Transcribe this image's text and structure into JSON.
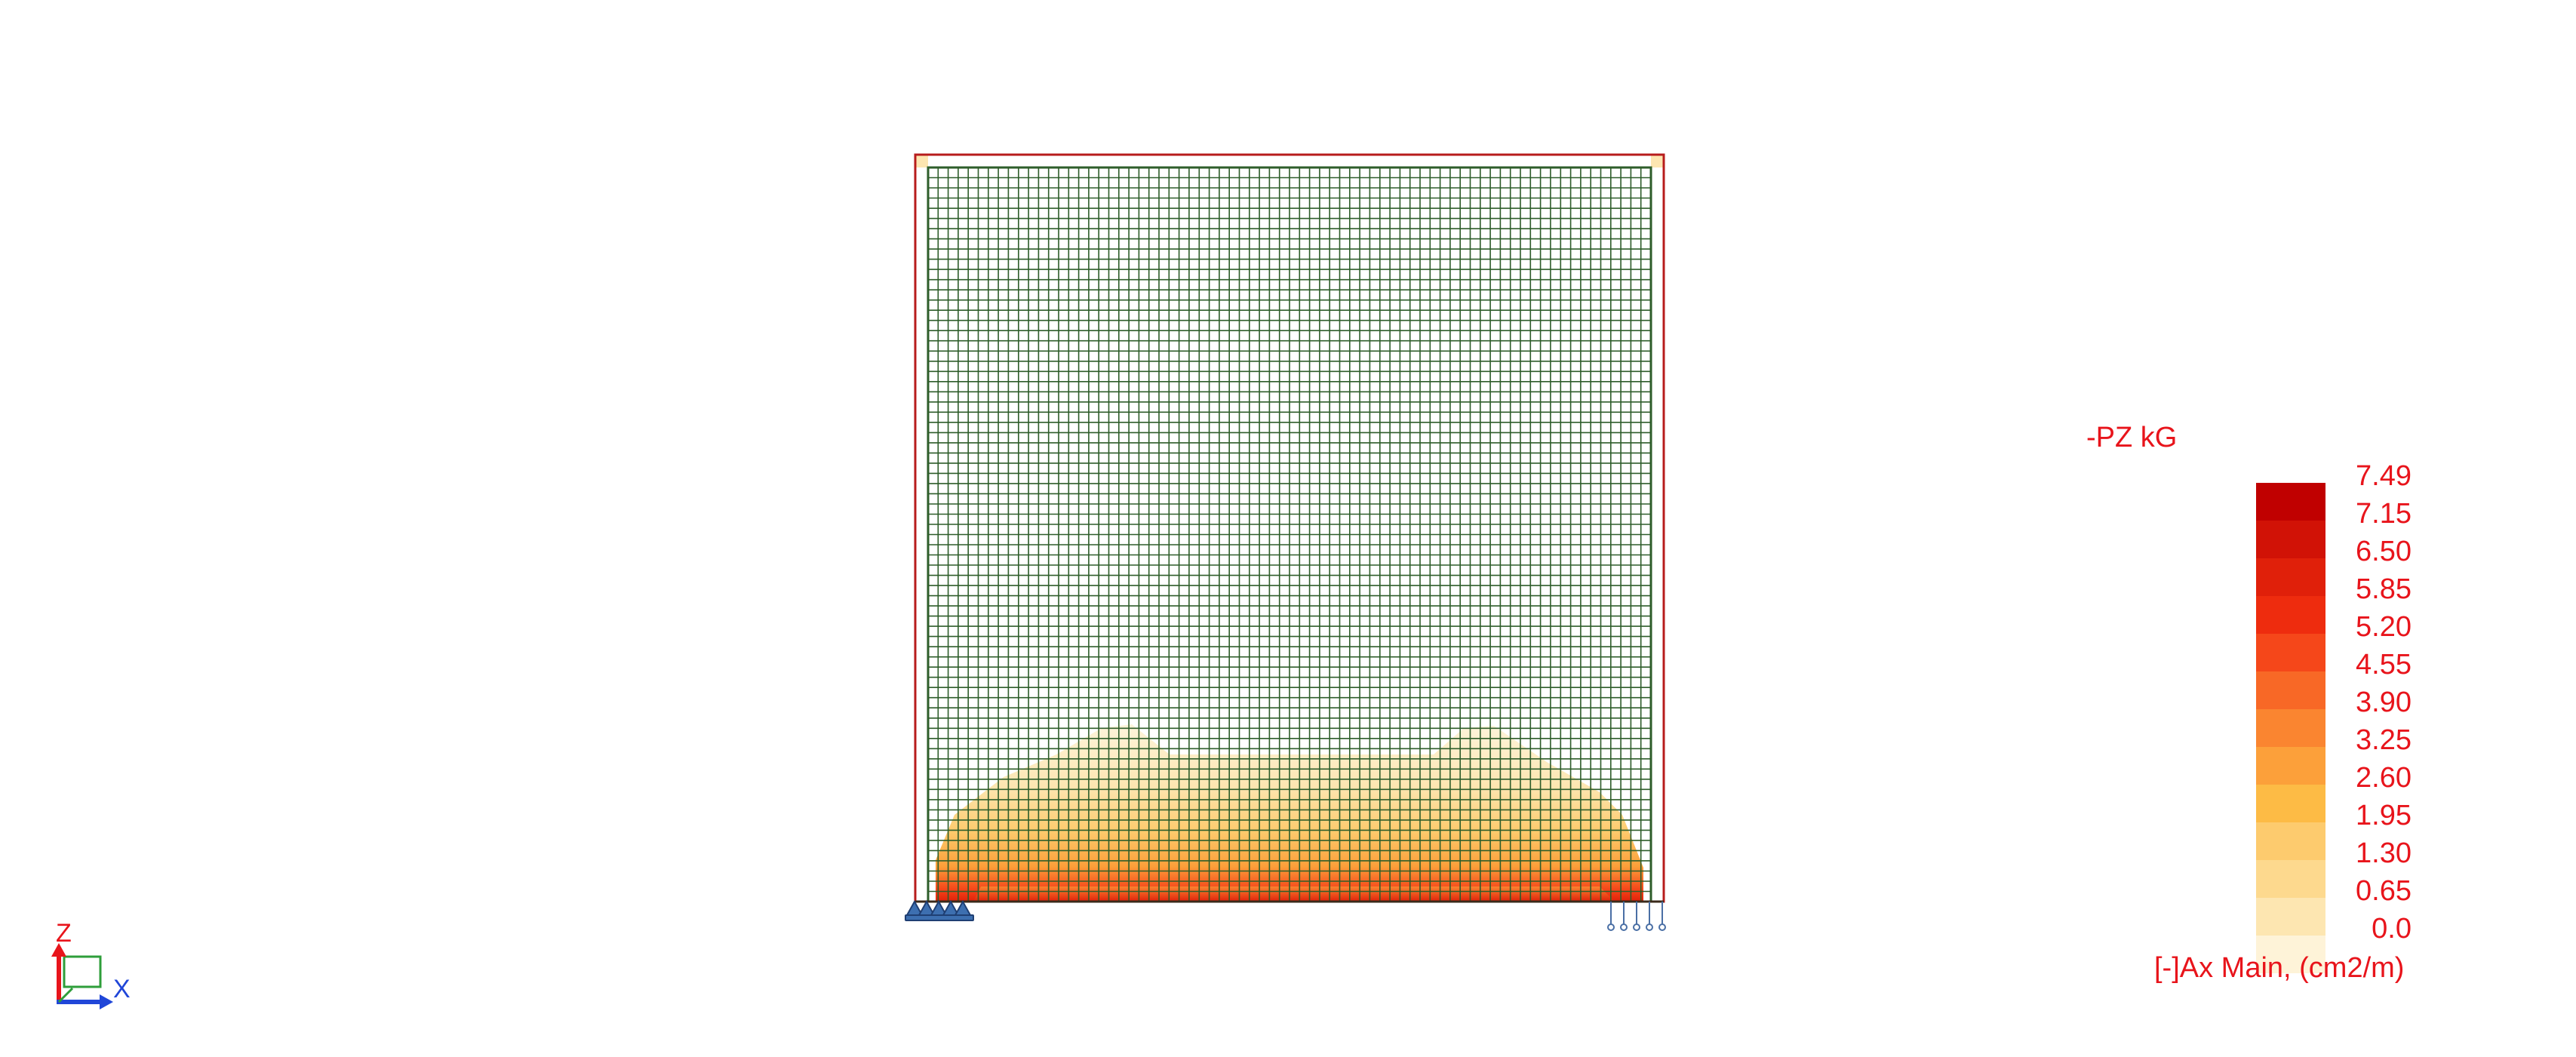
{
  "diagram": {
    "load_case": "-PZ kG",
    "quantity_caption": "[-]Ax Main, (cm2/m)",
    "colors": {
      "mesh_lines": "#2e5d2a",
      "panel_outline": "#b71c1c",
      "label_text": "#e8141b",
      "support_blue": "#3d6fb0"
    }
  },
  "legend": {
    "values": [
      "7.49",
      "7.15",
      "6.50",
      "5.85",
      "5.20",
      "4.55",
      "3.90",
      "3.25",
      "2.60",
      "1.95",
      "1.30",
      "0.65",
      "0.0"
    ],
    "band_colors": [
      "#c00000",
      "#d11206",
      "#e0200a",
      "#ee2c0e",
      "#f5471a",
      "#f86826",
      "#fa8530",
      "#fca03a",
      "#fdbb45",
      "#fdcb6e",
      "#fdd98e",
      "#fde6b1",
      "#fef3d8"
    ]
  },
  "axes": {
    "z_label": "Z",
    "x_label": "X"
  }
}
